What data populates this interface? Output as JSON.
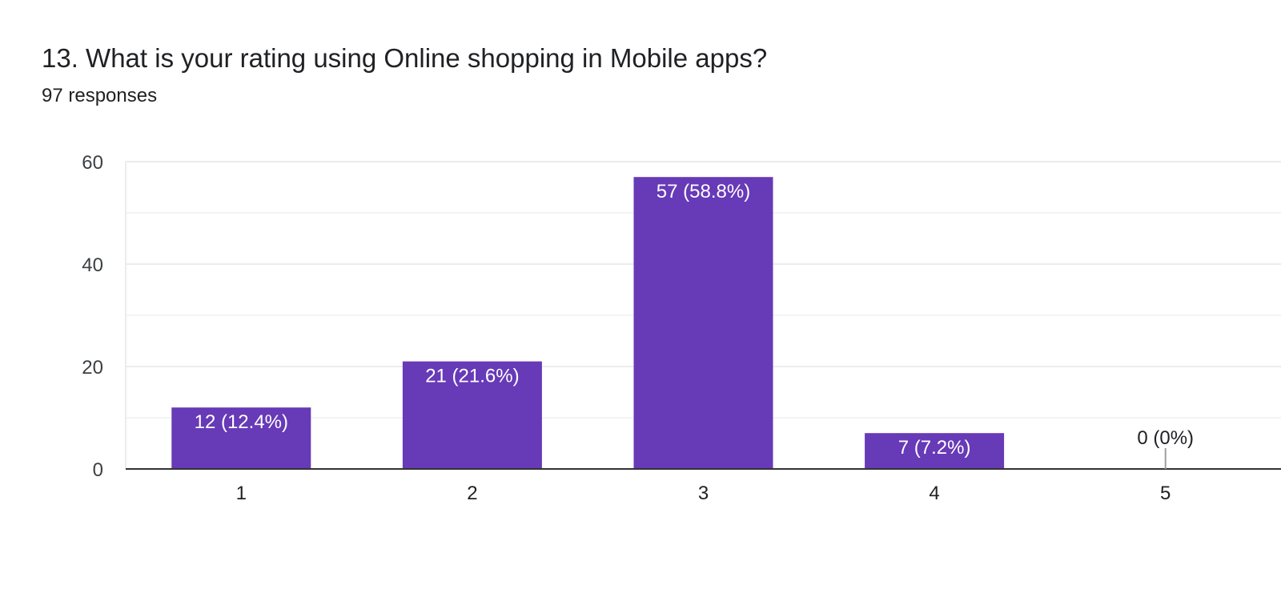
{
  "question": {
    "title": "13. What is your rating using Online shopping in Mobile apps?",
    "responses": "97 responses"
  },
  "colors": {
    "bar": "#673ab7",
    "gridline": "#ececec",
    "axis": "#333333"
  },
  "chart_data": {
    "type": "bar",
    "categories": [
      "1",
      "2",
      "3",
      "4",
      "5"
    ],
    "values": [
      12,
      21,
      57,
      7,
      0
    ],
    "data_labels": [
      "12 (12.4%)",
      "21 (21.6%)",
      "57 (58.8%)",
      "7 (7.2%)",
      "0 (0%)"
    ],
    "y_ticks": [
      0,
      20,
      40,
      60
    ],
    "ylim": [
      0,
      60
    ],
    "grid": true,
    "legend": "none"
  }
}
